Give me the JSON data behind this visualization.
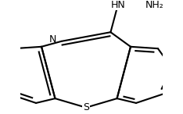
{
  "background": "#ffffff",
  "line_color": "#000000",
  "line_width": 1.5,
  "font_size_label": 9,
  "hn_label": "HN",
  "nh2_label": "NH₂",
  "n_label": "N",
  "s_label": "S",
  "xlim": [
    -1.2,
    1.4
  ],
  "ylim": [
    -1.05,
    0.85
  ]
}
